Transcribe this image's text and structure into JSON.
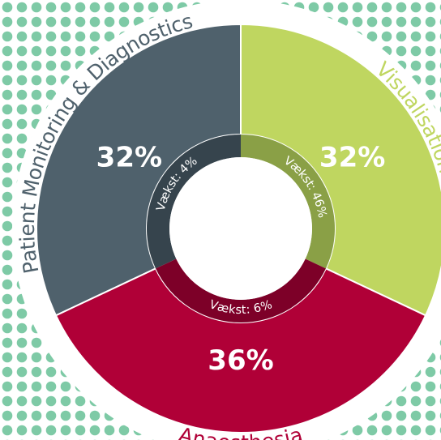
{
  "chart_data": {
    "type": "pie",
    "subtype": "donut",
    "segments": [
      {
        "name": "Patient Monitoring & Diagnostics",
        "share": 32,
        "share_label": "32%",
        "growth_label": "Vækst: 4%",
        "color": "#4f616c",
        "inner_color": "#36444d",
        "label_color": "#4f616c"
      },
      {
        "name": "Visualisation",
        "share": 32,
        "share_label": "32%",
        "growth_label": "Vækst: 46%",
        "color": "#bfd660",
        "inner_color": "#8aa046",
        "label_color": "#bfd660"
      },
      {
        "name": "Anaesthesia",
        "share": 36,
        "share_label": "36%",
        "growth_label": "Vækst: 6%",
        "color": "#b00037",
        "inner_color": "#7d0028",
        "label_color": "#b00037"
      }
    ],
    "legend": "none",
    "background_dots_color": "#7ecaa6"
  }
}
